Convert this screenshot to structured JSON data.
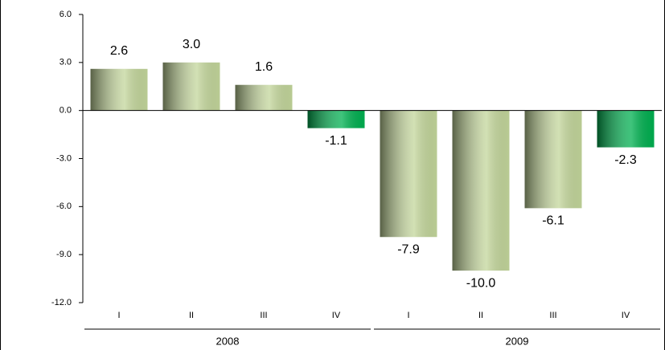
{
  "chart_data": {
    "type": "bar",
    "categories": [
      "I",
      "II",
      "III",
      "IV",
      "I",
      "II",
      "III",
      "IV"
    ],
    "groups": [
      "2008",
      "2009"
    ],
    "values": [
      2.6,
      3.0,
      1.6,
      -1.1,
      -7.9,
      -10.0,
      -6.1,
      -2.3
    ],
    "value_labels": [
      "2.6",
      "3.0",
      "1.6",
      "-1.1",
      "-7.9",
      "-10.0",
      "-6.1",
      "-2.3"
    ],
    "colors": [
      "#c3d69b",
      "#c3d69b",
      "#c3d69b",
      "#00b050",
      "#c3d69b",
      "#c3d69b",
      "#c3d69b",
      "#00b050"
    ],
    "ylim": [
      -12,
      6
    ],
    "yticks": [
      {
        "value": -12,
        "label": "-12.0"
      },
      {
        "value": -9,
        "label": "-9.0"
      },
      {
        "value": -6,
        "label": "-6.0"
      },
      {
        "value": -3,
        "label": "-3.0"
      },
      {
        "value": 0,
        "label": "0.0"
      },
      {
        "value": 3,
        "label": "3.0"
      },
      {
        "value": 6,
        "label": "6.0"
      }
    ]
  }
}
